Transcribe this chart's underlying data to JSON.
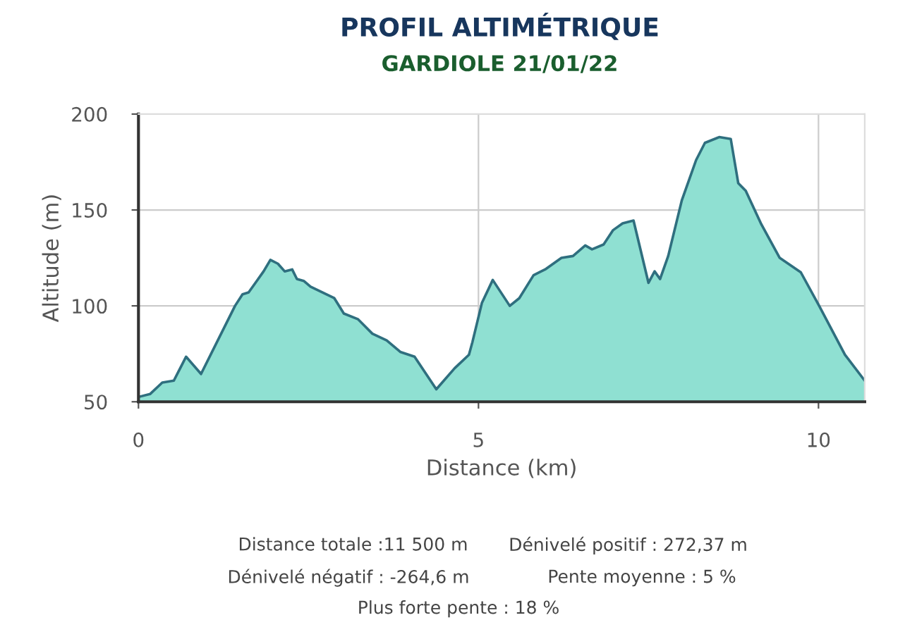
{
  "chart_data": {
    "type": "area",
    "title": "PROFIL ALTIMÉTRIQUE",
    "subtitle": "GARDIOLE 21/01/22",
    "xlabel": "Distance (km)",
    "ylabel": "Altitude (m)",
    "xlim": [
      0,
      10.68
    ],
    "xticks": [
      0,
      5,
      10
    ],
    "ylim": [
      50,
      200
    ],
    "yticks": [
      50,
      100,
      150,
      200
    ],
    "grid": true,
    "legend": false,
    "series": [
      {
        "color": "#8fe0d2",
        "x": [
          0,
          0.17,
          0.35,
          0.52,
          0.7,
          0.92,
          1.42,
          1.53,
          1.62,
          1.74,
          1.84,
          1.94,
          2.05,
          2.15,
          2.26,
          2.33,
          2.43,
          2.53,
          2.88,
          3.02,
          3.23,
          3.44,
          3.65,
          3.85,
          4.06,
          4.38,
          4.65,
          4.86,
          4.91,
          5.05,
          5.21,
          5.46,
          5.6,
          5.81,
          5.98,
          6.22,
          6.39,
          6.57,
          6.67,
          6.84,
          6.98,
          7.12,
          7.28,
          7.5,
          7.59,
          7.67,
          7.79,
          7.99,
          8.2,
          8.33,
          8.54,
          8.71,
          8.82,
          8.93,
          9.16,
          9.43,
          9.74,
          10.01,
          10.39,
          10.68
        ],
        "values": [
          52.5,
          54,
          60,
          61,
          73.5,
          64.5,
          100,
          106,
          107,
          113,
          118,
          124,
          122,
          118,
          119,
          114,
          113,
          110,
          104,
          96,
          93,
          85.5,
          82,
          76,
          73.5,
          56.5,
          67.5,
          74.5,
          81,
          101.5,
          113.5,
          100,
          104,
          116,
          119,
          125,
          126,
          131.5,
          129.5,
          132,
          139.5,
          143,
          144.5,
          112,
          118,
          114,
          126,
          155,
          176,
          185,
          188,
          187,
          164,
          160,
          142.5,
          125,
          117.5,
          100,
          74.5,
          61
        ]
      }
    ],
    "annotations": [
      "Distance totale :11 500 m",
      "Dénivelé positif : 272,37 m",
      "Dénivelé négatif : -264,6 m",
      "Pente moyenne : 5 %",
      "Plus forte pente : 18 %"
    ]
  }
}
